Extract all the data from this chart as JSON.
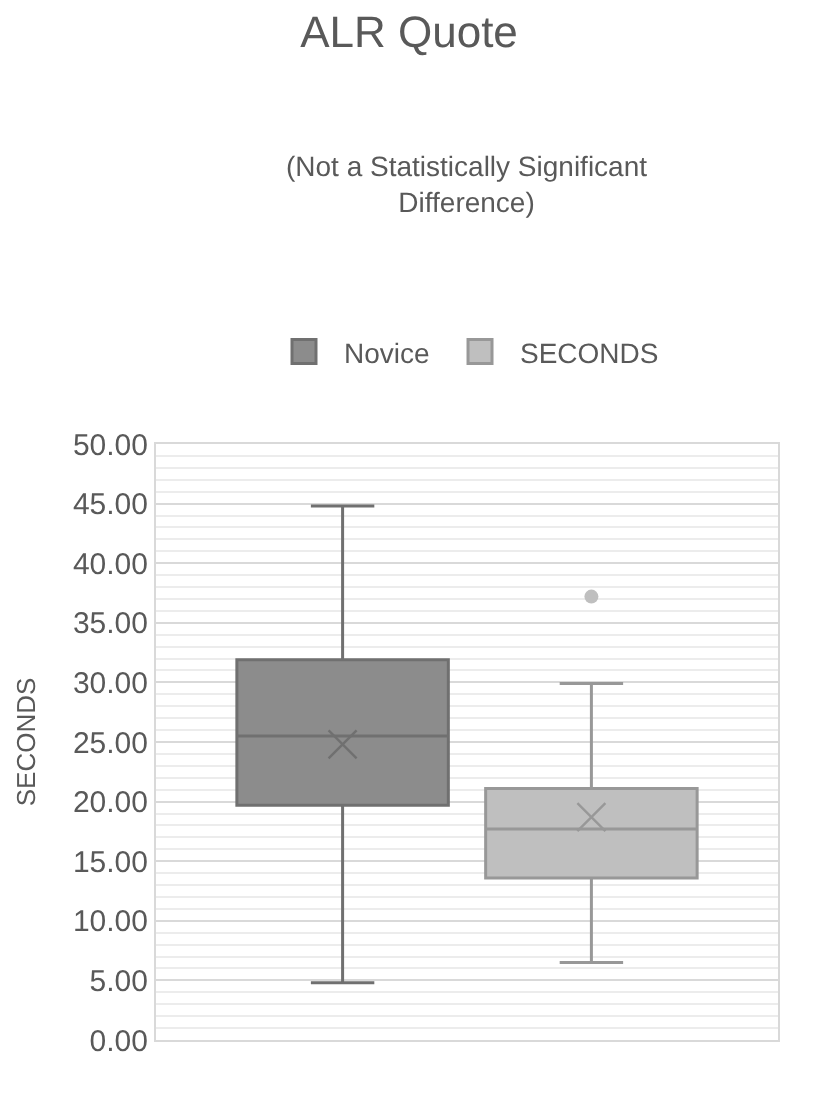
{
  "chart_data": {
    "type": "box",
    "title": "ALR Quote",
    "subtitle": "(Not a Statistically Significant\nDifference)",
    "ylabel": "SECONDS",
    "categories": [
      null
    ],
    "series": [
      {
        "name": "Novice",
        "color": "#8c8c8c",
        "boxes": [
          {
            "low": 4.8,
            "q1": 19.7,
            "median": 25.5,
            "q3": 31.9,
            "high": 44.8,
            "mean": 24.8
          }
        ]
      },
      {
        "name": "SECONDS",
        "color": "#bfbfbf",
        "boxes": [
          {
            "low": 6.5,
            "q1": 13.6,
            "median": 17.7,
            "q3": 21.1,
            "high": 29.9,
            "mean": 18.7,
            "outliers": [
              37.2
            ]
          }
        ]
      }
    ],
    "ylim": [
      0,
      50
    ],
    "yticks": [
      {
        "value": 0,
        "label": "0.00"
      },
      {
        "value": 5,
        "label": "5.00"
      },
      {
        "value": 10,
        "label": "10.00"
      },
      {
        "value": 15,
        "label": "15.00"
      },
      {
        "value": 20,
        "label": "20.00"
      },
      {
        "value": 25,
        "label": "25.00"
      },
      {
        "value": 30,
        "label": "30.00"
      },
      {
        "value": 35,
        "label": "35.00"
      },
      {
        "value": 40,
        "label": "40.00"
      },
      {
        "value": 45,
        "label": "45.00"
      },
      {
        "value": 50,
        "label": "50.00"
      }
    ],
    "grid": "y",
    "legend": "top",
    "tick_labels": "y",
    "marker": "circle"
  }
}
